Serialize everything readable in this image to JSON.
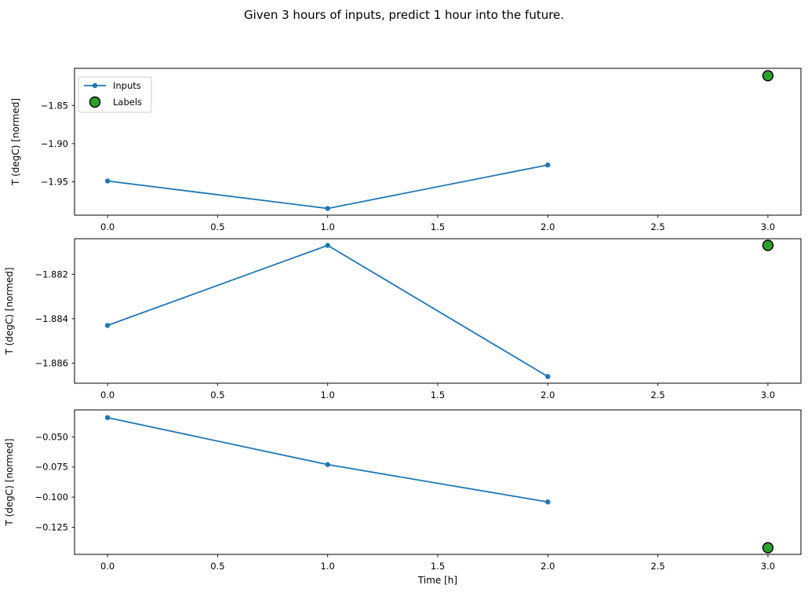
{
  "figure": {
    "title": "Given 3 hours of inputs, predict 1 hour into the future.",
    "xlabel": "Time [h]",
    "background": "#ffffff",
    "spine_color": "#000000"
  },
  "legend": {
    "position": "upper-left",
    "entries": [
      {
        "label": "Inputs",
        "marker": "line-dot",
        "color": "#1f77b4"
      },
      {
        "label": "Labels",
        "marker": "circle",
        "fill": "#2ca02c",
        "edge": "#000000"
      }
    ]
  },
  "chart_data": [
    {
      "type": "line",
      "ylabel": "T (degC) [normed]",
      "x": [
        0,
        1,
        2
      ],
      "series": [
        {
          "name": "Inputs",
          "values": [
            -1.949,
            -1.985,
            -1.928
          ],
          "color": "#1f77b4"
        }
      ],
      "labels_point": {
        "name": "Labels",
        "x": 3,
        "y": -1.811,
        "fill": "#2ca02c",
        "edge": "#000000"
      },
      "xlim": [
        -0.15,
        3.15
      ],
      "ylim": [
        -1.9938,
        -1.8013
      ],
      "xticks": {
        "values": [
          0,
          0.5,
          1,
          1.5,
          2,
          2.5,
          3
        ],
        "labels": [
          "0.0",
          "0.5",
          "1.0",
          "1.5",
          "2.0",
          "2.5",
          "3.0"
        ]
      },
      "yticks": {
        "values": [
          -1.85,
          -1.9,
          -1.95
        ],
        "labels": [
          "−1.85",
          "−1.90",
          "−1.95"
        ]
      },
      "legend": true,
      "grid": false
    },
    {
      "type": "line",
      "ylabel": "T (degC) [normed]",
      "x": [
        0,
        1,
        2
      ],
      "series": [
        {
          "name": "Inputs",
          "values": [
            -1.8843,
            -1.8807,
            -1.8866
          ],
          "color": "#1f77b4"
        }
      ],
      "labels_point": {
        "name": "Labels",
        "x": 3,
        "y": -1.8807,
        "fill": "#2ca02c",
        "edge": "#000000"
      },
      "xlim": [
        -0.15,
        3.15
      ],
      "ylim": [
        -1.8869,
        -1.8804
      ],
      "xticks": {
        "values": [
          0,
          0.5,
          1,
          1.5,
          2,
          2.5,
          3
        ],
        "labels": [
          "0.0",
          "0.5",
          "1.0",
          "1.5",
          "2.0",
          "2.5",
          "3.0"
        ]
      },
      "yticks": {
        "values": [
          -1.882,
          -1.884,
          -1.886
        ],
        "labels": [
          "−1.882",
          "−1.884",
          "−1.886"
        ]
      },
      "legend": false,
      "grid": false
    },
    {
      "type": "line",
      "ylabel": "T (degC) [normed]",
      "xlabel": "Time [h]",
      "x": [
        0,
        1,
        2
      ],
      "series": [
        {
          "name": "Inputs",
          "values": [
            -0.034,
            -0.073,
            -0.104
          ],
          "color": "#1f77b4"
        }
      ],
      "labels_point": {
        "name": "Labels",
        "x": 3,
        "y": -0.142,
        "fill": "#2ca02c",
        "edge": "#000000"
      },
      "xlim": [
        -0.15,
        3.15
      ],
      "ylim": [
        -0.1475,
        -0.0276
      ],
      "xticks": {
        "values": [
          0,
          0.5,
          1,
          1.5,
          2,
          2.5,
          3
        ],
        "labels": [
          "0.0",
          "0.5",
          "1.0",
          "1.5",
          "2.0",
          "2.5",
          "3.0"
        ]
      },
      "yticks": {
        "values": [
          -0.05,
          -0.075,
          -0.1,
          -0.125
        ],
        "labels": [
          "−0.050",
          "−0.075",
          "−0.100",
          "−0.125"
        ]
      },
      "legend": false,
      "grid": false
    }
  ]
}
